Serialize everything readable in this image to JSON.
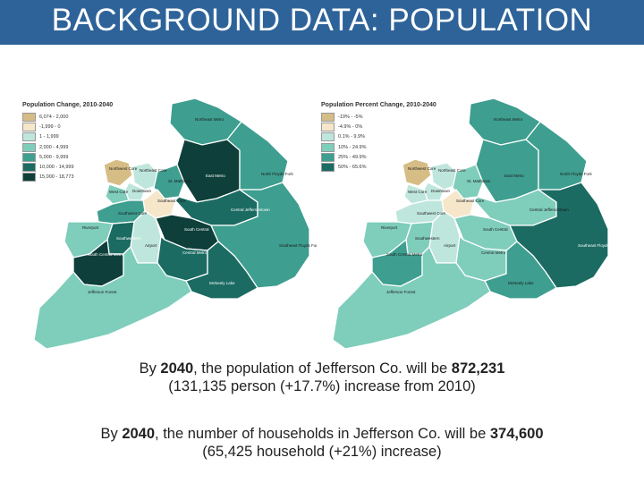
{
  "title": "BACKGROUND DATA: POPULATION",
  "colors": {
    "title_bar": "#2e6399",
    "c1": "#d6bd86",
    "c2": "#f6e7cb",
    "c3": "#bfe6dc",
    "c4": "#7fcdbb",
    "c5": "#3e9e8f",
    "c6": "#1b6b62",
    "c7": "#0e3f3a"
  },
  "maps": [
    {
      "title": "Population Change, 2010-2040",
      "legend": [
        {
          "label": "6,074 - 2,000",
          "color": "#d6bd86"
        },
        {
          "label": "-1,999 - 0",
          "color": "#f6e7cb"
        },
        {
          "label": "1 - 1,999",
          "color": "#bfe6dc"
        },
        {
          "label": "2,000 - 4,999",
          "color": "#7fcdbb"
        },
        {
          "label": "5,000 - 9,999",
          "color": "#3e9e8f"
        },
        {
          "label": "10,000 - 14,999",
          "color": "#1b6b62"
        },
        {
          "label": "15,000 - 18,773",
          "color": "#0e3f3a"
        }
      ],
      "regions": [
        {
          "name": "Northeast Metro",
          "color": "#3e9e8f"
        },
        {
          "name": "Northwest Core",
          "color": "#d6bd86"
        },
        {
          "name": "Northeast Core",
          "color": "#bfe6dc"
        },
        {
          "name": "Downtown",
          "color": "#bfe6dc"
        },
        {
          "name": "St. Matthews",
          "color": "#3e9e8f"
        },
        {
          "name": "East Metro",
          "color": "#0e3f3a"
        },
        {
          "name": "North Floyds Fork",
          "color": "#3e9e8f"
        },
        {
          "name": "West Core",
          "color": "#7fcdbb"
        },
        {
          "name": "Southeast Core",
          "color": "#f6e7cb"
        },
        {
          "name": "Southwest Core",
          "color": "#3e9e8f"
        },
        {
          "name": "Riverport",
          "color": "#7fcdbb"
        },
        {
          "name": "Airport",
          "color": "#bfe6dc"
        },
        {
          "name": "Central Jeffersontown",
          "color": "#1b6b62"
        },
        {
          "name": "South Central",
          "color": "#0e3f3a"
        },
        {
          "name": "Southwestern",
          "color": "#1b6b62"
        },
        {
          "name": "South Central Metro",
          "color": "#0e3f3a"
        },
        {
          "name": "Central Metro",
          "color": "#1b6b62"
        },
        {
          "name": "Southeast Floyds Fork",
          "color": "#3e9e8f"
        },
        {
          "name": "McNeely Lake",
          "color": "#1b6b62"
        },
        {
          "name": "Jefferson Forest",
          "color": "#7fcdbb"
        }
      ]
    },
    {
      "title": "Population Percent Change, 2010-2040",
      "legend": [
        {
          "label": "-19% - -5%",
          "color": "#d6bd86"
        },
        {
          "label": "-4.9% - 0%",
          "color": "#f6e7cb"
        },
        {
          "label": "0.1% - 9.9%",
          "color": "#bfe6dc"
        },
        {
          "label": "10% - 24.9%",
          "color": "#7fcdbb"
        },
        {
          "label": "25% - 49.9%",
          "color": "#3e9e8f"
        },
        {
          "label": "50% - 65.6%",
          "color": "#1b6b62"
        }
      ],
      "regions": [
        {
          "name": "Northeast Metro",
          "color": "#3e9e8f"
        },
        {
          "name": "Northwest Core",
          "color": "#d6bd86"
        },
        {
          "name": "Northeast Core",
          "color": "#bfe6dc"
        },
        {
          "name": "Downtown",
          "color": "#bfe6dc"
        },
        {
          "name": "St. Matthews",
          "color": "#7fcdbb"
        },
        {
          "name": "East Metro",
          "color": "#3e9e8f"
        },
        {
          "name": "North Floyds Fork",
          "color": "#3e9e8f"
        },
        {
          "name": "West Core",
          "color": "#bfe6dc"
        },
        {
          "name": "Southeast Core",
          "color": "#f6e7cb"
        },
        {
          "name": "Southwest Core",
          "color": "#bfe6dc"
        },
        {
          "name": "Riverport",
          "color": "#7fcdbb"
        },
        {
          "name": "Airport",
          "color": "#bfe6dc"
        },
        {
          "name": "Central Jeffersontown",
          "color": "#7fcdbb"
        },
        {
          "name": "South Central",
          "color": "#7fcdbb"
        },
        {
          "name": "Southwestern",
          "color": "#7fcdbb"
        },
        {
          "name": "South Central Metro",
          "color": "#3e9e8f"
        },
        {
          "name": "Central Metro",
          "color": "#7fcdbb"
        },
        {
          "name": "Southeast Floyds Fork",
          "color": "#1b6b62"
        },
        {
          "name": "McNeely Lake",
          "color": "#3e9e8f"
        },
        {
          "name": "Jefferson Forest",
          "color": "#7fcdbb"
        }
      ]
    }
  ],
  "caption1": {
    "a": "By ",
    "b": "2040",
    "c": ", the population of Jefferson Co. will be ",
    "d": "872,231",
    "e": "(131,135 person (+17.7%) increase from 2010)"
  },
  "caption2": {
    "a": "By ",
    "b": "2040",
    "c": ", the number of households in Jefferson Co. will be ",
    "d": "374,600",
    "e": "(65,425 household (+21%) increase)"
  }
}
